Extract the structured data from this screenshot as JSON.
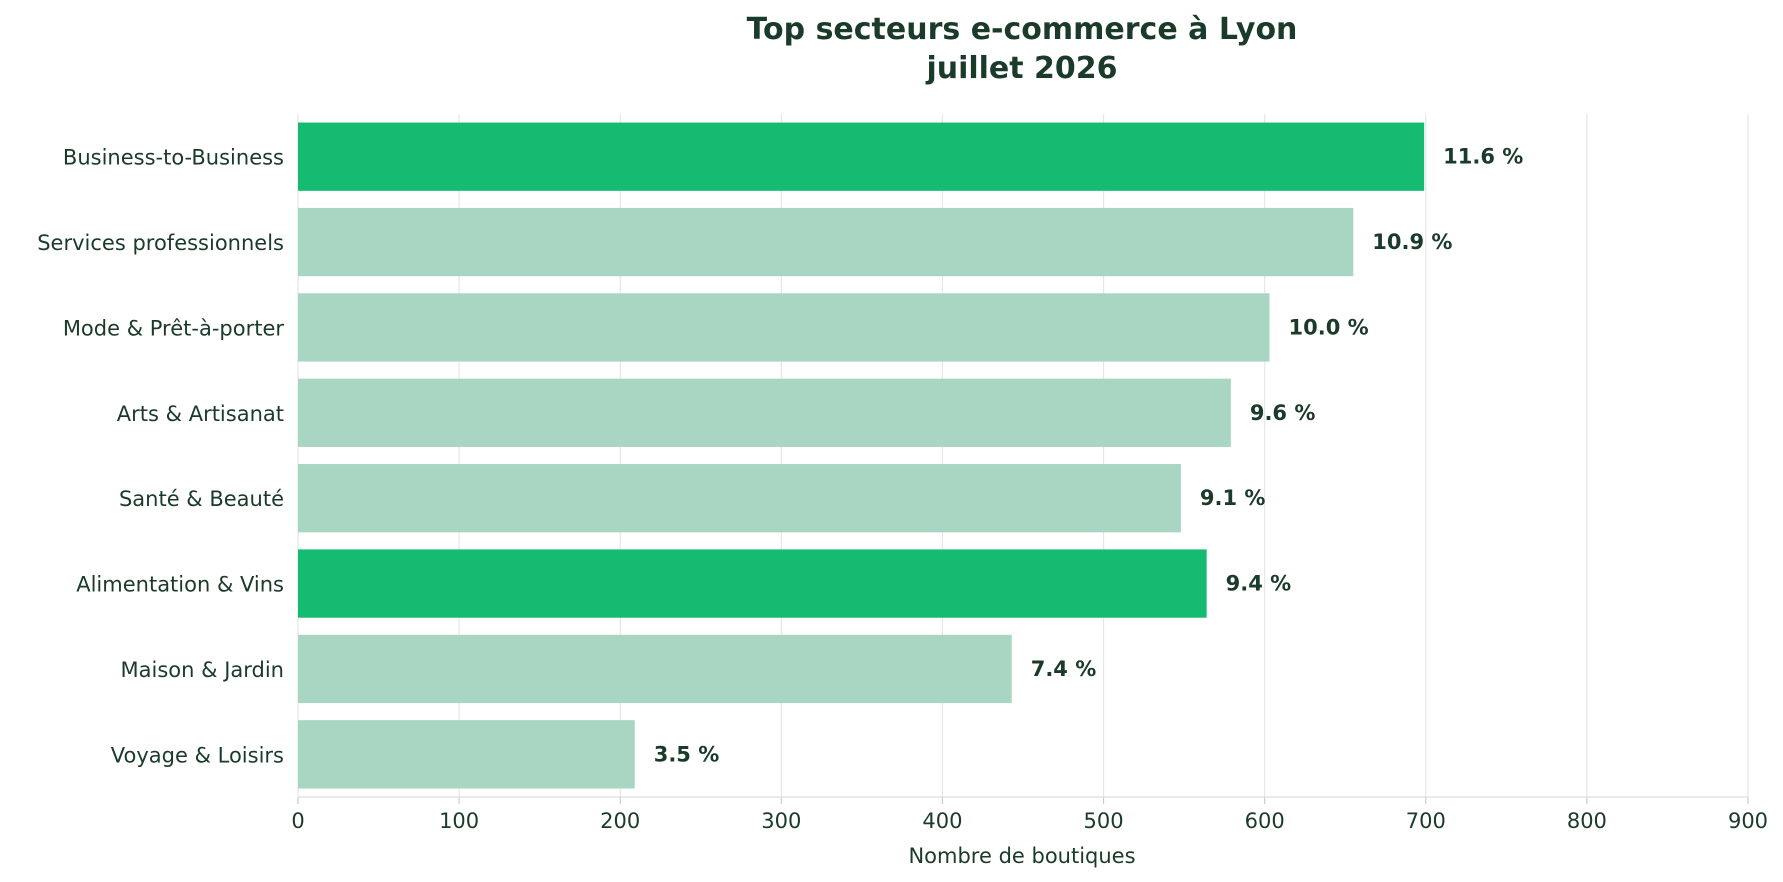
{
  "chart_data": {
    "type": "bar",
    "orientation": "horizontal",
    "title": "Top secteurs e-commerce à Lyon",
    "subtitle": "juillet 2026",
    "xlabel": "Nombre de boutiques",
    "ylabel": "",
    "xlim": [
      0,
      900
    ],
    "xticks": [
      "0",
      "100",
      "200",
      "300",
      "400",
      "500",
      "600",
      "700",
      "800",
      "900"
    ],
    "grid": "vertical",
    "categories": [
      "Business-to-Business",
      "Services professionnels",
      "Mode & Prêt-à-porter",
      "Arts & Artisanat",
      "Santé & Beauté",
      "Alimentation & Vins",
      "Maison & Jardin",
      "Voyage & Loisirs"
    ],
    "values": [
      699,
      655,
      603,
      579,
      548,
      564,
      443,
      209
    ],
    "data_labels": [
      "11.6 %",
      "10.9 %",
      "10.0 %",
      "9.6 %",
      "9.1 %",
      "9.4 %",
      "7.4 %",
      "3.5 %"
    ],
    "highlighted": [
      true,
      false,
      false,
      false,
      false,
      true,
      false,
      false
    ],
    "colors": {
      "highlight": "#14bb70",
      "normal": "#a8d6c2",
      "text": "#1a3a2a",
      "grid": "#e6e6e6"
    }
  }
}
